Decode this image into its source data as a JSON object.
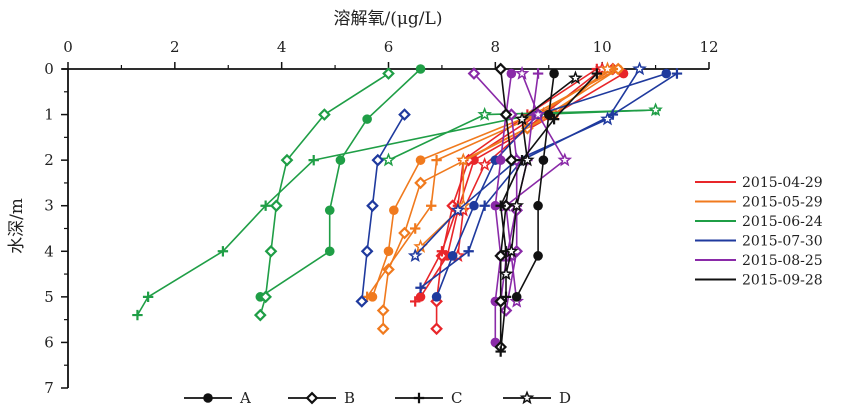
{
  "chart_data": {
    "type": "line",
    "xlabel": "溶解氧/(μg/L)",
    "ylabel": "水深/m",
    "xlim": [
      0,
      12
    ],
    "ylim": [
      0,
      7
    ],
    "x_ticks": [
      "0",
      "2",
      "4",
      "6",
      "8",
      "10",
      "12"
    ],
    "y_ticks": [
      "0",
      "1",
      "2",
      "3",
      "4",
      "5",
      "6",
      "7"
    ],
    "x_axis_position": "top",
    "y_axis_inverted": true,
    "grid": false,
    "legend_position": "right",
    "colors": {
      "2015-04-29": "#e8262a",
      "2015-05-29": "#f07a1e",
      "2015-06-24": "#1f9e46",
      "2015-07-30": "#1f3a9e",
      "2015-08-25": "#8a2aa8",
      "2015-09-28": "#111111"
    },
    "dates": [
      "2015-04-29",
      "2015-05-29",
      "2015-06-24",
      "2015-07-30",
      "2015-08-25",
      "2015-09-28"
    ],
    "sites": [
      {
        "label": "A",
        "marker": "circle"
      },
      {
        "label": "B",
        "marker": "diamond"
      },
      {
        "label": "C",
        "marker": "cross"
      },
      {
        "label": "D",
        "marker": "star"
      }
    ],
    "series": [
      {
        "date": "2015-04-29",
        "site": "A",
        "points": [
          [
            10.4,
            0.1
          ],
          [
            9.1,
            1.0
          ],
          [
            7.6,
            2.0
          ],
          [
            7.3,
            3.1
          ],
          [
            7.1,
            4.1
          ],
          [
            6.6,
            5.0
          ]
        ]
      },
      {
        "date": "2015-04-29",
        "site": "B",
        "points": [
          [
            10.2,
            0.0
          ],
          [
            8.8,
            1.0
          ],
          [
            7.5,
            2.0
          ],
          [
            7.2,
            3.0
          ],
          [
            7.0,
            4.1
          ],
          [
            6.9,
            5.1
          ],
          [
            6.9,
            5.7
          ]
        ]
      },
      {
        "date": "2015-04-29",
        "site": "C",
        "points": [
          [
            9.9,
            0.0
          ],
          [
            8.6,
            1.0
          ],
          [
            7.4,
            2.0
          ],
          [
            7.3,
            3.0
          ],
          [
            7.0,
            4.0
          ],
          [
            6.5,
            5.1
          ]
        ]
      },
      {
        "date": "2015-04-29",
        "site": "D",
        "points": [
          [
            10.0,
            0.0
          ],
          [
            8.9,
            1.0
          ],
          [
            7.8,
            2.1
          ],
          [
            7.4,
            3.1
          ],
          [
            7.3,
            4.1
          ]
        ]
      },
      {
        "date": "2015-05-29",
        "site": "A",
        "points": [
          [
            10.3,
            0.0
          ],
          [
            8.7,
            1.0
          ],
          [
            6.6,
            2.0
          ],
          [
            6.1,
            3.1
          ],
          [
            6.0,
            4.0
          ],
          [
            5.7,
            5.0
          ]
        ]
      },
      {
        "date": "2015-05-29",
        "site": "B",
        "points": [
          [
            10.3,
            0.0
          ],
          [
            8.6,
            1.3
          ],
          [
            6.6,
            2.5
          ],
          [
            6.3,
            3.6
          ],
          [
            6.0,
            4.4
          ],
          [
            5.9,
            5.3
          ],
          [
            5.9,
            5.7
          ]
        ]
      },
      {
        "date": "2015-05-29",
        "site": "C",
        "points": [
          [
            10.2,
            0.0
          ],
          [
            8.8,
            1.0
          ],
          [
            6.9,
            2.0
          ],
          [
            6.8,
            3.0
          ],
          [
            6.5,
            3.5
          ],
          [
            5.6,
            5.0
          ]
        ]
      },
      {
        "date": "2015-05-29",
        "site": "D",
        "points": [
          [
            10.1,
            0.0
          ],
          [
            9.1,
            1.0
          ],
          [
            7.4,
            2.0
          ],
          [
            7.4,
            3.0
          ],
          [
            6.6,
            3.9
          ]
        ]
      },
      {
        "date": "2015-06-24",
        "site": "A",
        "points": [
          [
            6.6,
            0.0
          ],
          [
            5.6,
            1.1
          ],
          [
            5.1,
            2.0
          ],
          [
            4.9,
            3.1
          ],
          [
            4.9,
            4.0
          ],
          [
            3.6,
            5.0
          ]
        ]
      },
      {
        "date": "2015-06-24",
        "site": "B",
        "points": [
          [
            6.0,
            0.1
          ],
          [
            4.8,
            1.0
          ],
          [
            4.1,
            2.0
          ],
          [
            3.9,
            3.0
          ],
          [
            3.8,
            4.0
          ],
          [
            3.7,
            5.0
          ],
          [
            3.6,
            5.4
          ]
        ]
      },
      {
        "date": "2015-06-24",
        "site": "C",
        "points": [
          [
            11.0,
            0.9
          ],
          [
            8.7,
            1.0
          ],
          [
            4.6,
            2.0
          ],
          [
            3.7,
            3.0
          ],
          [
            2.9,
            4.0
          ],
          [
            1.5,
            5.0
          ],
          [
            1.3,
            5.4
          ]
        ]
      },
      {
        "date": "2015-06-24",
        "site": "D",
        "points": [
          [
            11.0,
            0.9
          ],
          [
            7.8,
            1.0
          ],
          [
            6.0,
            2.0
          ]
        ]
      },
      {
        "date": "2015-07-30",
        "site": "A",
        "points": [
          [
            11.2,
            0.1
          ],
          [
            8.8,
            1.0
          ],
          [
            8.0,
            2.0
          ],
          [
            7.6,
            3.0
          ],
          [
            7.2,
            4.1
          ],
          [
            6.9,
            5.0
          ]
        ]
      },
      {
        "date": "2015-07-30",
        "site": "B",
        "points": [
          [
            6.3,
            1.0
          ],
          [
            5.8,
            2.0
          ],
          [
            5.7,
            3.0
          ],
          [
            5.6,
            4.0
          ],
          [
            5.5,
            5.1
          ]
        ]
      },
      {
        "date": "2015-07-30",
        "site": "C",
        "points": [
          [
            11.4,
            0.1
          ],
          [
            10.2,
            1.0
          ],
          [
            8.5,
            2.0
          ],
          [
            7.8,
            3.0
          ],
          [
            7.5,
            4.0
          ],
          [
            6.6,
            4.8
          ]
        ]
      },
      {
        "date": "2015-07-30",
        "site": "D",
        "points": [
          [
            10.7,
            0.0
          ],
          [
            10.1,
            1.1
          ],
          [
            8.4,
            2.0
          ],
          [
            7.3,
            3.1
          ],
          [
            6.5,
            4.1
          ]
        ]
      },
      {
        "date": "2015-08-25",
        "site": "A",
        "points": [
          [
            8.3,
            0.1
          ],
          [
            8.2,
            1.0
          ],
          [
            8.1,
            2.0
          ],
          [
            8.0,
            3.0
          ],
          [
            8.1,
            4.1
          ],
          [
            8.0,
            5.1
          ],
          [
            8.0,
            6.0
          ]
        ]
      },
      {
        "date": "2015-08-25",
        "site": "B",
        "points": [
          [
            7.6,
            0.1
          ],
          [
            8.3,
            1.0
          ],
          [
            8.4,
            2.0
          ],
          [
            8.4,
            3.1
          ],
          [
            8.4,
            4.0
          ],
          [
            8.2,
            5.3
          ]
        ]
      },
      {
        "date": "2015-08-25",
        "site": "C",
        "points": [
          [
            8.8,
            0.1
          ],
          [
            8.7,
            1.0
          ],
          [
            8.6,
            2.0
          ],
          [
            8.4,
            3.0
          ],
          [
            8.2,
            4.2
          ],
          [
            8.1,
            5.1
          ]
        ]
      },
      {
        "date": "2015-08-25",
        "site": "D",
        "points": [
          [
            8.5,
            0.1
          ],
          [
            8.8,
            1.0
          ],
          [
            9.3,
            2.0
          ],
          [
            8.2,
            3.0
          ],
          [
            8.3,
            4.1
          ],
          [
            8.4,
            5.1
          ]
        ]
      },
      {
        "date": "2015-09-28",
        "site": "A",
        "points": [
          [
            9.1,
            0.1
          ],
          [
            9.0,
            1.0
          ],
          [
            8.9,
            2.0
          ],
          [
            8.8,
            3.0
          ],
          [
            8.8,
            4.1
          ],
          [
            8.4,
            5.0
          ]
        ]
      },
      {
        "date": "2015-09-28",
        "site": "B",
        "points": [
          [
            8.1,
            0.0
          ],
          [
            8.2,
            1.0
          ],
          [
            8.3,
            2.0
          ],
          [
            8.2,
            3.0
          ],
          [
            8.1,
            4.1
          ],
          [
            8.1,
            5.1
          ],
          [
            8.1,
            6.1
          ]
        ]
      },
      {
        "date": "2015-09-28",
        "site": "C",
        "points": [
          [
            9.9,
            0.1
          ],
          [
            9.1,
            1.1
          ],
          [
            8.5,
            2.0
          ],
          [
            8.1,
            3.0
          ],
          [
            8.2,
            4.0
          ],
          [
            8.2,
            5.0
          ],
          [
            8.1,
            6.2
          ]
        ]
      },
      {
        "date": "2015-09-28",
        "site": "D",
        "points": [
          [
            9.5,
            0.2
          ],
          [
            8.5,
            1.1
          ],
          [
            8.6,
            2.0
          ],
          [
            8.4,
            3.0
          ],
          [
            8.3,
            4.0
          ],
          [
            8.2,
            4.5
          ]
        ]
      }
    ]
  }
}
